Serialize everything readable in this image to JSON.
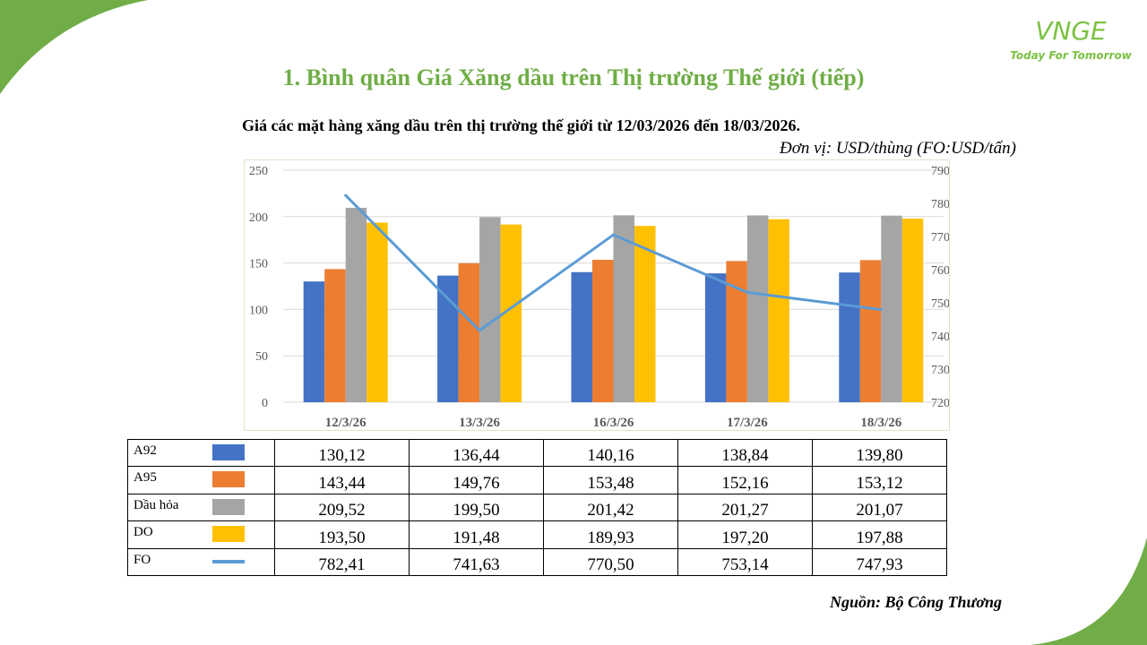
{
  "title": "1. Bình quân Giá Xăng dầu trên Thị trường Thế giới (tiếp)",
  "logo": {
    "mark": "VNGE",
    "tagline": "Today For Tomorrow"
  },
  "brand_color": "#70ad47",
  "chart_data": {
    "type": "bar+line",
    "title": "Giá các mặt hàng xăng dầu trên thị trường thế giới từ 12/03/2026 đến 18/03/2026.",
    "unit": "Đơn vị:  USD/thùng (FO:USD/tấn)",
    "categories": [
      "12/3/26",
      "13/3/26",
      "16/3/26",
      "17/3/26",
      "18/3/26"
    ],
    "ylim": [
      0,
      250
    ],
    "yticks": [
      0,
      50,
      100,
      150,
      200,
      250
    ],
    "y2lim": [
      720,
      790
    ],
    "y2ticks": [
      720,
      730,
      740,
      750,
      760,
      770,
      780,
      790
    ],
    "series": [
      {
        "name": "A92",
        "type": "bar",
        "axis": "left",
        "color": "#4472c4",
        "values": [
          130.12,
          136.44,
          140.16,
          138.84,
          139.8
        ],
        "labels": [
          "130,12",
          "136,44",
          "140,16",
          "138,84",
          "139,80"
        ]
      },
      {
        "name": "A95",
        "type": "bar",
        "axis": "left",
        "color": "#ed7d31",
        "values": [
          143.44,
          149.76,
          153.48,
          152.16,
          153.12
        ],
        "labels": [
          "143,44",
          "149,76",
          "153,48",
          "152,16",
          "153,12"
        ]
      },
      {
        "name": "Dầu hỏa",
        "type": "bar",
        "axis": "left",
        "color": "#a5a5a5",
        "values": [
          209.52,
          199.5,
          201.42,
          201.27,
          201.07
        ],
        "labels": [
          "209,52",
          "199,50",
          "201,42",
          "201,27",
          "201,07"
        ]
      },
      {
        "name": "DO",
        "type": "bar",
        "axis": "left",
        "color": "#ffc000",
        "values": [
          193.5,
          191.48,
          189.93,
          197.2,
          197.88
        ],
        "labels": [
          "193,50",
          "191,48",
          "189,93",
          "197,20",
          "197,88"
        ]
      },
      {
        "name": "FO",
        "type": "line",
        "axis": "right",
        "color": "#5b9bd5",
        "values": [
          782.41,
          741.63,
          770.5,
          753.14,
          747.93
        ],
        "labels": [
          "782,41",
          "741,63",
          "770,50",
          "753,14",
          "747,93"
        ]
      }
    ],
    "grid": true,
    "legend": "table-below"
  },
  "source": "Nguồn: Bộ Công Thương"
}
